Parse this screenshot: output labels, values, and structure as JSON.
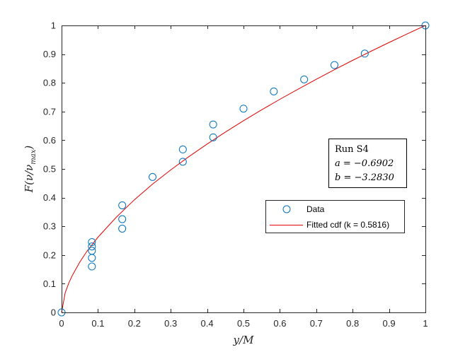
{
  "chart_data": {
    "type": "scatter",
    "xlabel": "y/M",
    "ylabel": "F(ν/ν_max)",
    "ylabel_base": "F(ν/ν",
    "ylabel_sub": "max",
    "ylabel_close": ")",
    "xlim": [
      0,
      1
    ],
    "ylim": [
      0,
      1
    ],
    "xticks": [
      0,
      0.1,
      0.2,
      0.3,
      0.4,
      0.5,
      0.6,
      0.7,
      0.8,
      0.9,
      1
    ],
    "yticks": [
      0,
      0.1,
      0.2,
      0.3,
      0.4,
      0.5,
      0.6,
      0.7,
      0.8,
      0.9,
      1
    ],
    "xtick_labels": [
      "0",
      "0.1",
      "0.2",
      "0.3",
      "0.4",
      "0.5",
      "0.6",
      "0.7",
      "0.8",
      "0.9",
      "1"
    ],
    "ytick_labels": [
      "0",
      "0.1",
      "0.2",
      "0.3",
      "0.4",
      "0.5",
      "0.6",
      "0.7",
      "0.8",
      "0.9",
      "1"
    ],
    "grid": false,
    "colors": {
      "data": "#0072BD",
      "fit": "#e00000",
      "axis": "#262626"
    },
    "series": [
      {
        "name": "Data",
        "kind": "markers",
        "marker": "circle",
        "x": [
          0,
          0.0833,
          0.0833,
          0.0833,
          0.0833,
          0.0833,
          0.1667,
          0.1667,
          0.1667,
          0.25,
          0.3333,
          0.3333,
          0.4167,
          0.4167,
          0.5,
          0.5833,
          0.6667,
          0.75,
          0.8333,
          1
        ],
        "y": [
          0,
          0.245,
          0.23,
          0.215,
          0.19,
          0.16,
          0.373,
          0.325,
          0.292,
          0.472,
          0.568,
          0.525,
          0.655,
          0.61,
          0.71,
          0.77,
          0.812,
          0.862,
          0.902,
          1
        ]
      },
      {
        "name": "Fitted cdf (k = 0.5816)",
        "kind": "line",
        "exponent": 0.5816,
        "x": [
          0,
          0.01,
          0.02,
          0.03,
          0.05,
          0.07,
          0.1,
          0.15,
          0.2,
          0.25,
          0.3,
          0.35,
          0.4,
          0.45,
          0.5,
          0.55,
          0.6,
          0.65,
          0.7,
          0.75,
          0.8,
          0.85,
          0.9,
          0.95,
          1
        ],
        "y": [
          0,
          0.0688,
          0.103,
          0.13,
          0.1753,
          0.2136,
          0.262,
          0.3312,
          0.3924,
          0.447,
          0.4967,
          0.543,
          0.5867,
          0.6283,
          0.668,
          0.706,
          0.7426,
          0.7779,
          0.8125,
          0.846,
          0.8784,
          0.9098,
          0.9406,
          0.9706,
          1
        ]
      }
    ],
    "annotation": {
      "title": "Run S4",
      "line_a": "a = −0.6902",
      "line_b": "b = −3.2830"
    },
    "legend": {
      "location": "right",
      "entries": [
        "Data",
        "Fitted cdf (k = 0.5816)"
      ]
    }
  }
}
